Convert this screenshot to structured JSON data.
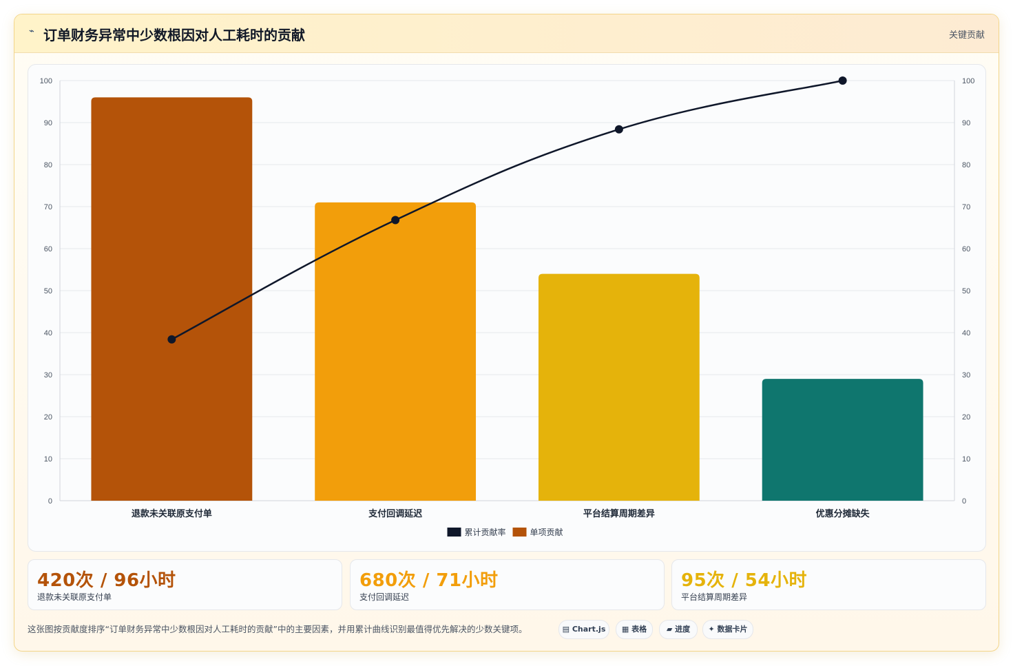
{
  "header": {
    "icon": "chart-line-icon",
    "title": "订单财务异常中少数根因对人工耗时的贡献",
    "tag": "关键贡献"
  },
  "chart_data": {
    "type": "bar",
    "categories": [
      "退款未关联原支付单",
      "支付回调延迟",
      "平台结算周期差异",
      "优惠分摊缺失"
    ],
    "series": [
      {
        "name": "累计贡献率",
        "type": "line",
        "color": "#0f172a",
        "values": [
          38.4,
          66.8,
          88.4,
          100
        ]
      },
      {
        "name": "单项贡献",
        "type": "bar",
        "values": [
          96,
          71,
          54,
          29
        ],
        "colors": [
          "#b45309",
          "#f29e0b",
          "#e5b30b",
          "#0f766e"
        ]
      }
    ],
    "ylim": [
      0,
      100
    ],
    "y_ticks": [
      0,
      10,
      20,
      30,
      40,
      50,
      60,
      70,
      80,
      90,
      100
    ],
    "y2lim": [
      0,
      100
    ],
    "y2_ticks": [
      0,
      10,
      20,
      30,
      40,
      50,
      60,
      70,
      80,
      90,
      100
    ],
    "grid": true,
    "legend_position": "bottom-center"
  },
  "stats": [
    {
      "value": "420次 / 96小时",
      "label": "退款未关联原支付单",
      "color": "#b45309"
    },
    {
      "value": "680次 / 71小时",
      "label": "支付回调延迟",
      "color": "#f29e0b"
    },
    {
      "value": "95次 / 54小时",
      "label": "平台结算周期差异",
      "color": "#e5b30b"
    }
  ],
  "footer": {
    "description": "这张图按贡献度排序“订单财务异常中少数根因对人工耗时的贡献”中的主要因素，并用累计曲线识别最值得优先解决的少数关键项。",
    "pills": [
      {
        "icon": "chart-icon",
        "glyph": "▤",
        "label": "Chart.js"
      },
      {
        "icon": "table-icon",
        "glyph": "▦",
        "label": "表格"
      },
      {
        "icon": "progress-icon",
        "glyph": "▰",
        "label": "进度"
      },
      {
        "icon": "card-icon",
        "glyph": "✦",
        "label": "数据卡片"
      }
    ]
  }
}
